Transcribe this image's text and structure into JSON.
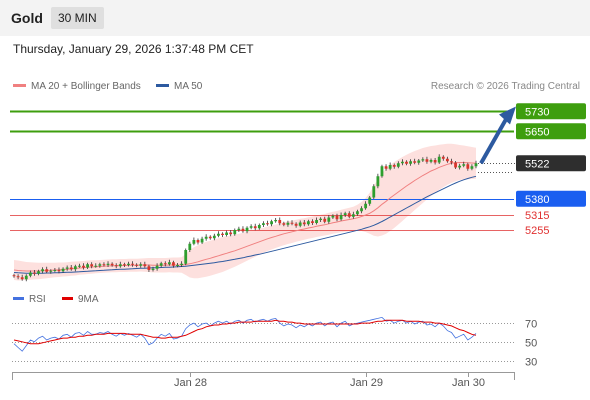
{
  "header": {
    "symbol": "Gold",
    "timeframe": "30 MIN"
  },
  "timestamp": "Thursday, January 29, 2026 1:37:48 PM CET",
  "legend": {
    "items": [
      {
        "label": "MA 20 + Bollinger Bands",
        "color": "#f08080"
      },
      {
        "label": "MA 50",
        "color": "#2d5aa0"
      }
    ]
  },
  "credit": "Research © 2026 Trading Central",
  "rsi_legend": {
    "items": [
      {
        "label": "RSI",
        "color": "#4472e0"
      },
      {
        "label": "9MA",
        "color": "#e00000"
      }
    ]
  },
  "chart_data": [
    {
      "type": "candlestick",
      "title": "Gold",
      "ylim": [
        5035,
        5795
      ],
      "x_labels": [
        "Jan 28",
        "Jan 29",
        "Jan 30"
      ],
      "levels": [
        {
          "value": 5730,
          "label": "5730",
          "kind": "target",
          "color": "#3e9e0e"
        },
        {
          "value": 5650,
          "label": "5650",
          "kind": "target",
          "color": "#3e9e0e"
        },
        {
          "value": 5522,
          "label": "5522",
          "kind": "last",
          "color": "#2e2e2e"
        },
        {
          "value": 5380,
          "label": "5380",
          "kind": "pivot",
          "color": "#1a5ef0"
        },
        {
          "value": 5315,
          "label": "5315",
          "kind": "support",
          "color": "#e03030"
        },
        {
          "value": 5255,
          "label": "5255",
          "kind": "support",
          "color": "#e03030"
        }
      ],
      "close": [
        5070,
        5066,
        5058,
        5072,
        5085,
        5080,
        5090,
        5098,
        5088,
        5092,
        5095,
        5090,
        5100,
        5105,
        5098,
        5110,
        5112,
        5105,
        5118,
        5110,
        5112,
        5118,
        5115,
        5120,
        5114,
        5110,
        5118,
        5115,
        5120,
        5116,
        5112,
        5118,
        5110,
        5095,
        5100,
        5112,
        5122,
        5118,
        5126,
        5112,
        5115,
        5120,
        5175,
        5200,
        5215,
        5205,
        5220,
        5228,
        5222,
        5232,
        5240,
        5235,
        5245,
        5238,
        5255,
        5260,
        5250,
        5264,
        5270,
        5262,
        5275,
        5282,
        5278,
        5290,
        5295,
        5282,
        5276,
        5284,
        5280,
        5272,
        5285,
        5278,
        5290,
        5283,
        5295,
        5300,
        5288,
        5305,
        5312,
        5298,
        5315,
        5322,
        5308,
        5318,
        5330,
        5342,
        5360,
        5385,
        5430,
        5470,
        5510,
        5500,
        5515,
        5508,
        5522,
        5528,
        5520,
        5530,
        5524,
        5533,
        5538,
        5528,
        5535,
        5525,
        5548,
        5540,
        5530,
        5525,
        5505,
        5512,
        5518,
        5500,
        5510,
        5522
      ],
      "indicators": {
        "ma20": [
          5095,
          5093,
          5092,
          5091,
          5091,
          5091,
          5091,
          5092,
          5093,
          5094,
          5095,
          5096,
          5097,
          5098,
          5100,
          5101,
          5103,
          5104,
          5106,
          5107,
          5108,
          5109,
          5110,
          5111,
          5112,
          5112,
          5113,
          5113,
          5114,
          5114,
          5114,
          5115,
          5115,
          5115,
          5114,
          5114,
          5114,
          5114,
          5115,
          5115,
          5115,
          5115,
          5117,
          5120,
          5124,
          5128,
          5133,
          5138,
          5142,
          5147,
          5152,
          5157,
          5162,
          5167,
          5172,
          5178,
          5184,
          5190,
          5196,
          5202,
          5208,
          5214,
          5220,
          5225,
          5230,
          5235,
          5240,
          5244,
          5248,
          5252,
          5256,
          5259,
          5263,
          5266,
          5270,
          5273,
          5276,
          5280,
          5284,
          5287,
          5291,
          5294,
          5297,
          5300,
          5304,
          5309,
          5315,
          5322,
          5332,
          5344,
          5358,
          5370,
          5383,
          5395,
          5407,
          5419,
          5431,
          5442,
          5453,
          5463,
          5473,
          5482,
          5491,
          5498,
          5506,
          5512,
          5518,
          5522,
          5524,
          5525,
          5525,
          5524,
          5523,
          5522
        ],
        "bb_width": [
          40,
          40,
          38,
          36,
          35,
          34,
          33,
          32,
          31,
          30,
          29,
          29,
          28,
          28,
          28,
          28,
          27,
          27,
          27,
          27,
          26,
          26,
          26,
          26,
          26,
          26,
          26,
          26,
          26,
          26,
          26,
          26,
          27,
          28,
          29,
          29,
          29,
          29,
          29,
          30,
          30,
          31,
          42,
          55,
          62,
          66,
          68,
          70,
          70,
          70,
          70,
          70,
          68,
          66,
          64,
          62,
          60,
          58,
          56,
          54,
          52,
          50,
          49,
          48,
          47,
          46,
          46,
          45,
          45,
          44,
          44,
          43,
          43,
          43,
          43,
          43,
          43,
          44,
          44,
          44,
          45,
          46,
          47,
          48,
          52,
          58,
          68,
          82,
          100,
          115,
          125,
          130,
          132,
          132,
          130,
          128,
          125,
          122,
          118,
          114,
          110,
          105,
          100,
          95,
          90,
          86,
          82,
          78,
          74,
          70,
          68,
          66,
          64,
          62
        ],
        "ma50": [
          5085,
          5084,
          5083,
          5082,
          5082,
          5082,
          5082,
          5082,
          5083,
          5083,
          5084,
          5084,
          5085,
          5086,
          5086,
          5087,
          5088,
          5089,
          5090,
          5091,
          5092,
          5093,
          5094,
          5095,
          5096,
          5097,
          5098,
          5098,
          5099,
          5100,
          5101,
          5102,
          5102,
          5103,
          5104,
          5104,
          5105,
          5106,
          5106,
          5107,
          5108,
          5109,
          5110,
          5112,
          5114,
          5116,
          5118,
          5120,
          5122,
          5124,
          5127,
          5129,
          5132,
          5135,
          5138,
          5141,
          5144,
          5148,
          5151,
          5155,
          5158,
          5162,
          5166,
          5170,
          5174,
          5178,
          5182,
          5186,
          5190,
          5194,
          5198,
          5202,
          5206,
          5210,
          5214,
          5218,
          5222,
          5226,
          5230,
          5234,
          5238,
          5242,
          5246,
          5250,
          5254,
          5258,
          5263,
          5268,
          5274,
          5281,
          5289,
          5298,
          5307,
          5316,
          5325,
          5334,
          5343,
          5352,
          5361,
          5370,
          5379,
          5388,
          5396,
          5404,
          5412,
          5420,
          5428,
          5436,
          5443,
          5450,
          5456,
          5461,
          5466,
          5470
        ]
      }
    },
    {
      "type": "line",
      "title": "RSI",
      "ylim": [
        20,
        85
      ],
      "yticks": [
        70,
        50,
        30
      ],
      "series": [
        {
          "name": "RSI",
          "color": "#4472e0",
          "values": [
            48,
            44,
            40,
            46,
            52,
            50,
            54,
            56,
            52,
            54,
            55,
            53,
            57,
            58,
            55,
            59,
            60,
            57,
            61,
            58,
            58,
            60,
            59,
            61,
            58,
            56,
            59,
            57,
            59,
            57,
            55,
            58,
            54,
            47,
            49,
            54,
            58,
            56,
            59,
            53,
            54,
            56,
            64,
            68,
            70,
            66,
            69,
            70,
            67,
            70,
            72,
            70,
            72,
            69,
            72,
            73,
            70,
            73,
            74,
            71,
            73,
            74,
            72,
            74,
            75,
            70,
            67,
            69,
            68,
            65,
            68,
            66,
            69,
            67,
            70,
            71,
            67,
            70,
            71,
            66,
            70,
            72,
            67,
            69,
            70,
            71,
            72,
            73,
            74,
            75,
            76,
            72,
            73,
            70,
            72,
            73,
            70,
            72,
            69,
            71,
            72,
            68,
            69,
            66,
            70,
            67,
            62,
            60,
            54,
            56,
            58,
            52,
            55,
            59
          ]
        },
        {
          "name": "9MA",
          "color": "#e00000",
          "values": [
            52,
            51,
            50,
            49,
            48,
            48,
            48,
            49,
            50,
            51,
            52,
            53,
            54,
            54,
            55,
            55,
            56,
            56,
            57,
            57,
            58,
            58,
            58,
            59,
            59,
            59,
            59,
            59,
            58,
            58,
            58,
            58,
            57,
            56,
            55,
            55,
            54,
            54,
            55,
            55,
            55,
            56,
            57,
            59,
            61,
            63,
            64,
            66,
            67,
            68,
            68,
            69,
            69,
            70,
            70,
            71,
            71,
            71,
            71,
            72,
            72,
            72,
            72,
            72,
            73,
            72,
            72,
            71,
            71,
            70,
            70,
            69,
            69,
            69,
            69,
            69,
            69,
            69,
            69,
            69,
            69,
            69,
            69,
            69,
            69,
            70,
            70,
            70,
            71,
            72,
            72,
            73,
            73,
            73,
            73,
            73,
            72,
            72,
            72,
            72,
            71,
            71,
            71,
            70,
            70,
            69,
            68,
            67,
            65,
            63,
            62,
            60,
            58,
            57
          ]
        }
      ]
    }
  ]
}
